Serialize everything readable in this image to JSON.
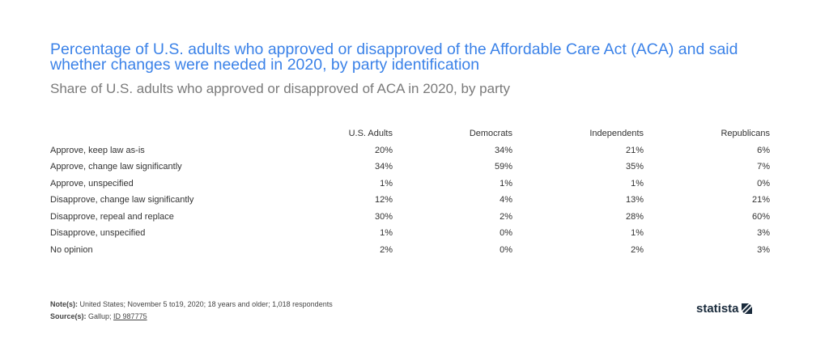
{
  "title": "Percentage of U.S. adults who approved or disapproved of the Affordable Care Act (ACA) and said whether changes were needed in 2020, by party identification",
  "subtitle": "Share of U.S. adults who approved or disapproved of ACA in 2020, by party",
  "chart_data": {
    "type": "table",
    "columns": [
      "U.S. Adults",
      "Democrats",
      "Independents",
      "Republicans"
    ],
    "rows": [
      {
        "label": "Approve, keep law as-is",
        "values": [
          "20%",
          "34%",
          "21%",
          "6%"
        ]
      },
      {
        "label": "Approve, change law significantly",
        "values": [
          "34%",
          "59%",
          "35%",
          "7%"
        ]
      },
      {
        "label": "Approve, unspecified",
        "values": [
          "1%",
          "1%",
          "1%",
          "0%"
        ]
      },
      {
        "label": "Disapprove, change law significantly",
        "values": [
          "12%",
          "4%",
          "13%",
          "21%"
        ]
      },
      {
        "label": "Disapprove, repeal and replace",
        "values": [
          "30%",
          "2%",
          "28%",
          "60%"
        ]
      },
      {
        "label": "Disapprove, unspecified",
        "values": [
          "1%",
          "0%",
          "1%",
          "3%"
        ]
      },
      {
        "label": "No opinion",
        "values": [
          "2%",
          "0%",
          "2%",
          "3%"
        ]
      }
    ]
  },
  "footer": {
    "note_label": "Note(s):",
    "note_text": " United States; November 5 to19, 2020; 18 years and older; 1,018 respondents",
    "source_label": "Source(s):",
    "source_text": " Gallup; ",
    "source_id": "ID 987775"
  },
  "logo": "statista",
  "colors": {
    "title": "#3b82e8",
    "subtitle": "#7a7a7a"
  }
}
